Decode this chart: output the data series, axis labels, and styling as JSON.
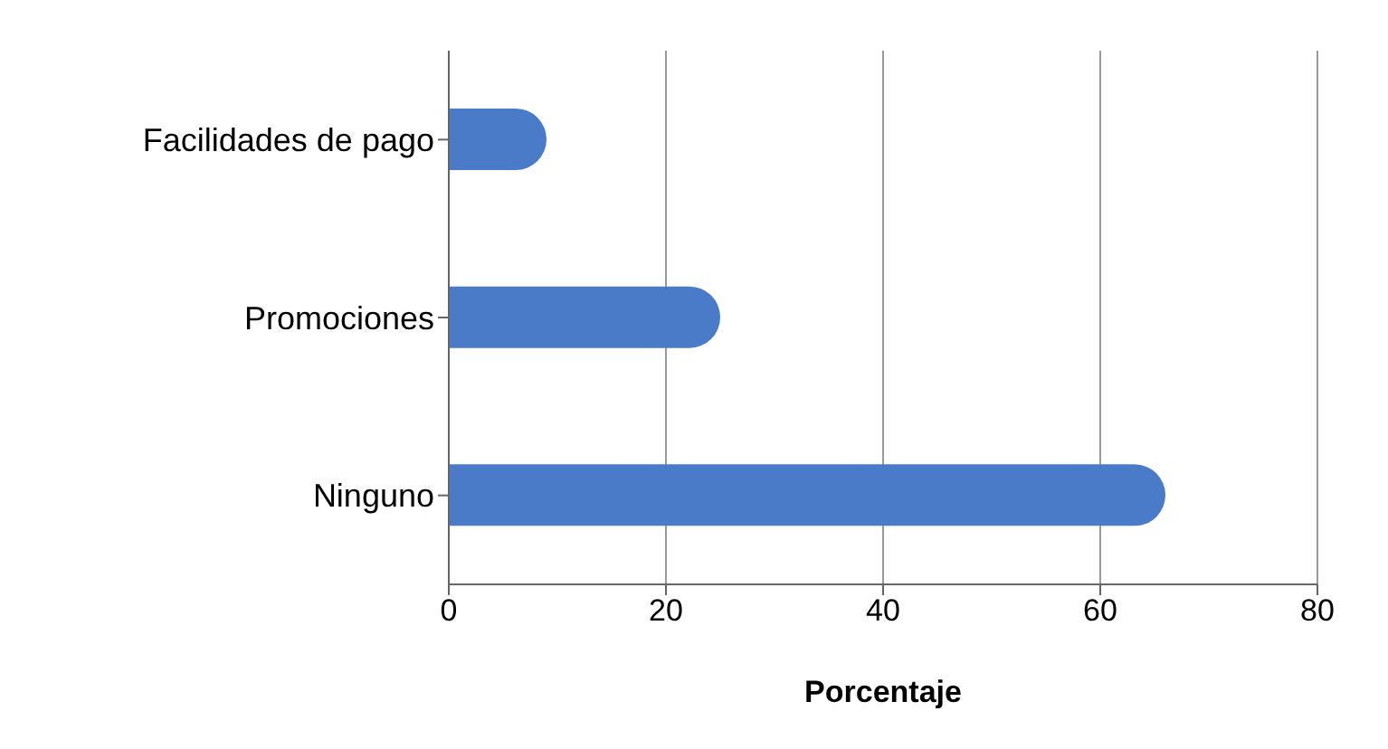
{
  "chart_data": {
    "type": "bar",
    "orientation": "horizontal",
    "categories": [
      "Facilidades de pago",
      "Promociones",
      "Ninguno"
    ],
    "values": [
      9,
      25,
      66
    ],
    "color": "#4a7bc8",
    "xlabel": "Porcentaje",
    "xlim": [
      0,
      80
    ],
    "xticks": [
      0,
      20,
      40,
      60,
      80
    ],
    "grid": "x"
  }
}
